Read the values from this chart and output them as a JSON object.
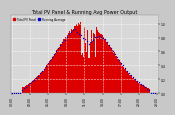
{
  "title": "Total PV Panel & Running Avg Power Output",
  "bg_color": "#c8c8c8",
  "plot_bg_color": "#d8d8d8",
  "bar_color": "#dd0000",
  "avg_color": "#0000cc",
  "grid_color": "#ffffff",
  "text_color": "#000000",
  "n_points": 288,
  "peak_index": 144,
  "sigma": 55,
  "ylim": [
    0,
    1.12
  ],
  "legend_pv": "Total PV Panel",
  "legend_avg": "Running Average",
  "legend_pv_color": "#dd0000",
  "legend_avg_color": "#0000cc",
  "title_fontsize": 3.5,
  "tick_fontsize": 2.2,
  "legend_fontsize": 2.0
}
